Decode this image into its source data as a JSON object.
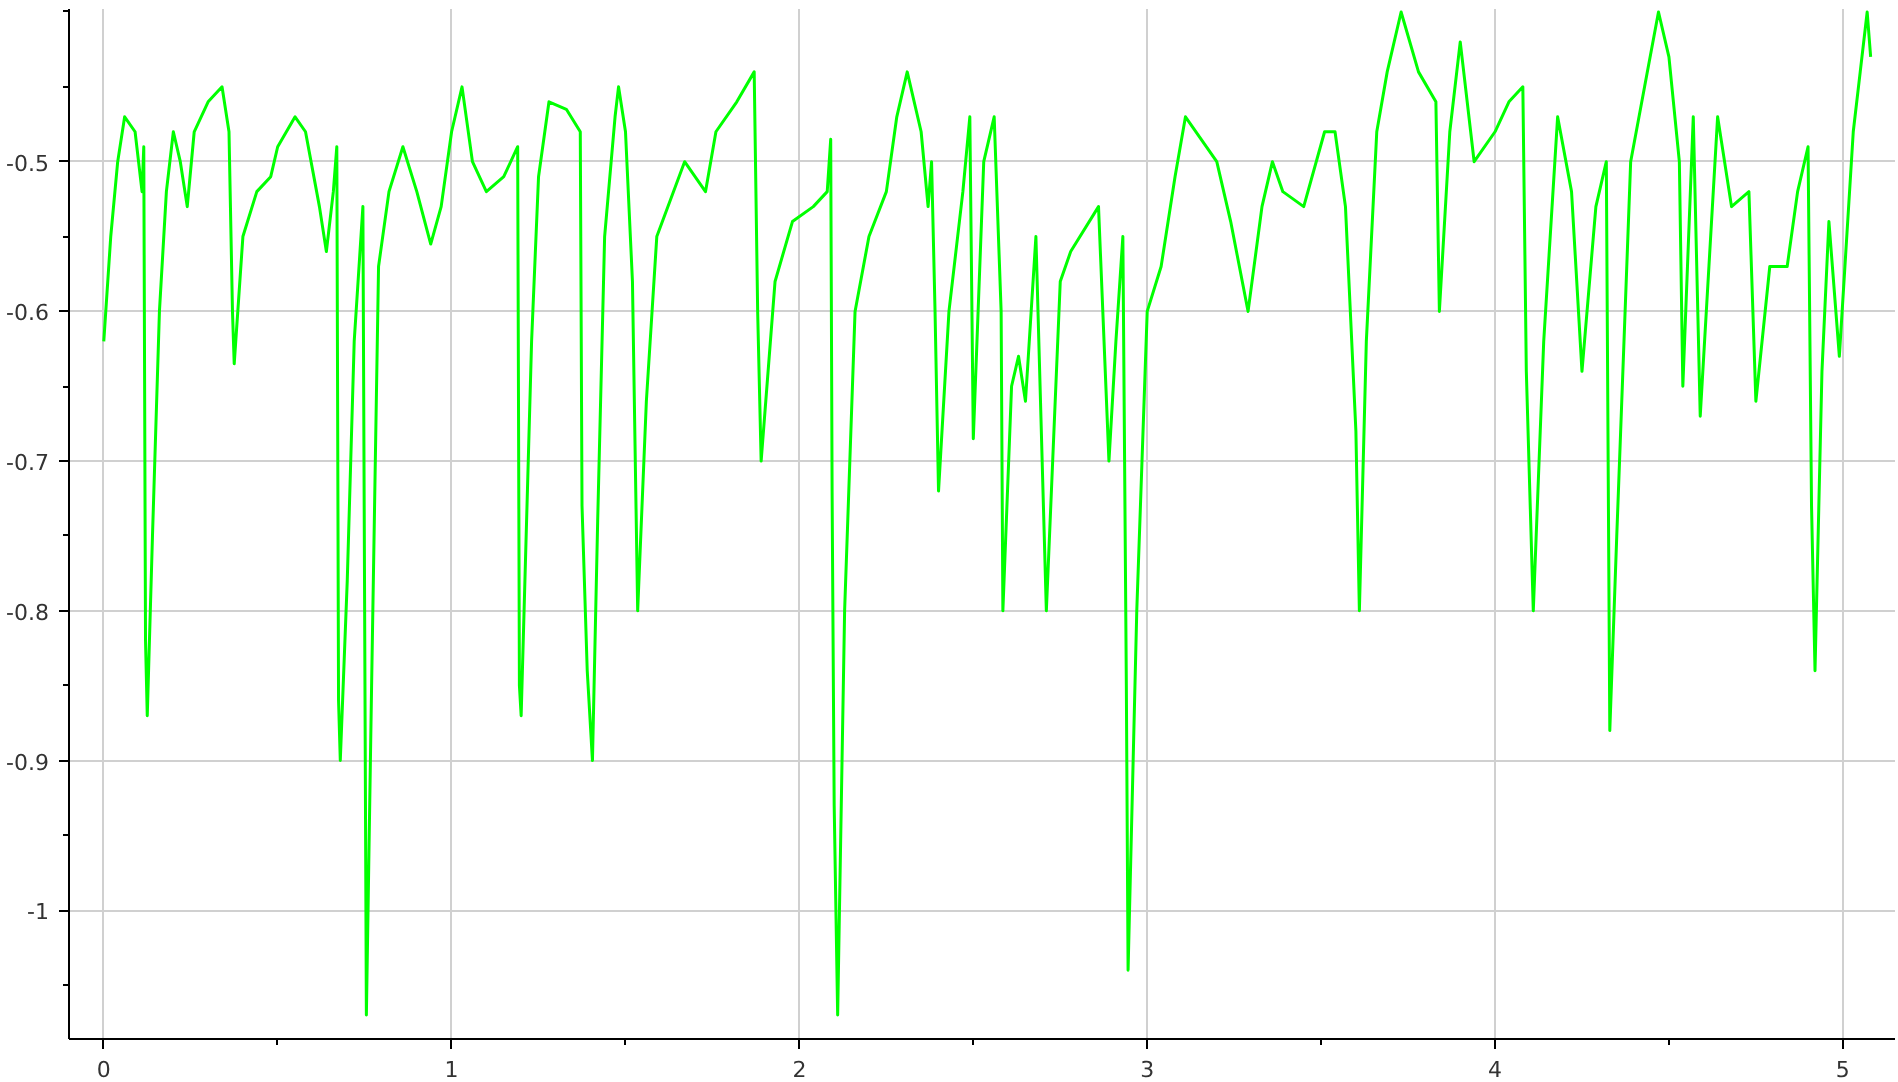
{
  "chart_data": {
    "type": "line",
    "xlim": [
      -0.1,
      5.15
    ],
    "ylim": [
      -1.086,
      -0.398
    ],
    "xticks": [
      0,
      {
        "value": 0.5,
        "label": null
      },
      1,
      {
        "value": 1.5,
        "label": null
      },
      2,
      {
        "value": 2.5,
        "label": null
      },
      3,
      {
        "value": 3.5,
        "label": null
      },
      4,
      {
        "value": 4.5,
        "label": null
      },
      5
    ],
    "yticks": [
      {
        "value": -1.05,
        "label": null
      },
      -1,
      {
        "value": -0.95,
        "label": null
      },
      -0.9,
      {
        "value": -0.85,
        "label": null
      },
      -0.8,
      {
        "value": -0.75,
        "label": null
      },
      -0.7,
      {
        "value": -0.65,
        "label": null
      },
      -0.6,
      {
        "value": -0.55,
        "label": null
      },
      -0.5,
      {
        "value": -0.45,
        "label": null
      },
      {
        "value": -0.4,
        "label": null
      }
    ],
    "grid": true,
    "marker": "none",
    "line_style": "solid",
    "series": [
      {
        "color": "#00ff00",
        "x": [
          0.0,
          0.02,
          0.04,
          0.06,
          0.09,
          0.11,
          0.115,
          0.12,
          0.125,
          0.14,
          0.16,
          0.18,
          0.2,
          0.22,
          0.24,
          0.26,
          0.3,
          0.34,
          0.36,
          0.37,
          0.375,
          0.4,
          0.44,
          0.48,
          0.5,
          0.55,
          0.58,
          0.62,
          0.64,
          0.66,
          0.67,
          0.675,
          0.68,
          0.7,
          0.72,
          0.745,
          0.755,
          0.77,
          0.79,
          0.82,
          0.86,
          0.9,
          0.94,
          0.97,
          1.0,
          1.03,
          1.06,
          1.1,
          1.15,
          1.19,
          1.195,
          1.2,
          1.23,
          1.25,
          1.28,
          1.33,
          1.37,
          1.375,
          1.39,
          1.405,
          1.42,
          1.44,
          1.47,
          1.48,
          1.5,
          1.52,
          1.535,
          1.56,
          1.59,
          1.67,
          1.73,
          1.76,
          1.82,
          1.87,
          1.88,
          1.89,
          1.93,
          1.98,
          2.04,
          2.08,
          2.09,
          2.094,
          2.1,
          2.11,
          2.13,
          2.16,
          2.2,
          2.25,
          2.28,
          2.31,
          2.35,
          2.37,
          2.38,
          2.39,
          2.4,
          2.43,
          2.47,
          2.49,
          2.5,
          2.53,
          2.56,
          2.58,
          2.585,
          2.61,
          2.63,
          2.65,
          2.68,
          2.71,
          2.75,
          2.78,
          2.86,
          2.89,
          2.91,
          2.93,
          2.94,
          2.945,
          2.97,
          3.0,
          3.04,
          3.08,
          3.11,
          3.2,
          3.24,
          3.29,
          3.33,
          3.36,
          3.39,
          3.45,
          3.51,
          3.54,
          3.57,
          3.6,
          3.61,
          3.63,
          3.66,
          3.69,
          3.73,
          3.78,
          3.83,
          3.84,
          3.87,
          3.9,
          3.94,
          4.0,
          4.04,
          4.08,
          4.09,
          4.11,
          4.14,
          4.18,
          4.22,
          4.25,
          4.29,
          4.32,
          4.33,
          4.35,
          4.39,
          4.43,
          4.47,
          4.5,
          4.53,
          4.54,
          4.57,
          4.59,
          4.64,
          4.68,
          4.73,
          4.75,
          4.79,
          4.84,
          4.87,
          4.9,
          4.91,
          4.92,
          4.94,
          4.96,
          4.99,
          5.03,
          5.05,
          5.07,
          5.08
        ],
        "values": [
          -0.62,
          -0.55,
          -0.5,
          -0.47,
          -0.48,
          -0.52,
          -0.49,
          -0.82,
          -0.87,
          -0.75,
          -0.6,
          -0.52,
          -0.48,
          -0.5,
          -0.53,
          -0.48,
          -0.46,
          -0.45,
          -0.48,
          -0.6,
          -0.635,
          -0.55,
          -0.52,
          -0.51,
          -0.49,
          -0.47,
          -0.48,
          -0.53,
          -0.56,
          -0.52,
          -0.49,
          -0.86,
          -0.9,
          -0.78,
          -0.62,
          -0.53,
          -1.07,
          -0.85,
          -0.57,
          -0.52,
          -0.49,
          -0.52,
          -0.555,
          -0.53,
          -0.48,
          -0.45,
          -0.5,
          -0.52,
          -0.51,
          -0.49,
          -0.85,
          -0.87,
          -0.62,
          -0.51,
          -0.46,
          -0.465,
          -0.48,
          -0.73,
          -0.84,
          -0.9,
          -0.74,
          -0.55,
          -0.47,
          -0.45,
          -0.48,
          -0.58,
          -0.8,
          -0.66,
          -0.55,
          -0.5,
          -0.52,
          -0.48,
          -0.46,
          -0.44,
          -0.6,
          -0.7,
          -0.58,
          -0.54,
          -0.53,
          -0.52,
          -0.485,
          -0.72,
          -0.93,
          -1.07,
          -0.8,
          -0.6,
          -0.55,
          -0.52,
          -0.47,
          -0.44,
          -0.48,
          -0.53,
          -0.5,
          -0.6,
          -0.72,
          -0.6,
          -0.52,
          -0.47,
          -0.685,
          -0.5,
          -0.47,
          -0.6,
          -0.8,
          -0.65,
          -0.63,
          -0.66,
          -0.55,
          -0.8,
          -0.58,
          -0.56,
          -0.53,
          -0.7,
          -0.62,
          -0.55,
          -0.85,
          -1.04,
          -0.8,
          -0.6,
          -0.57,
          -0.51,
          -0.47,
          -0.5,
          -0.54,
          -0.6,
          -0.53,
          -0.5,
          -0.52,
          -0.53,
          -0.48,
          -0.48,
          -0.53,
          -0.68,
          -0.8,
          -0.62,
          -0.48,
          -0.44,
          -0.4,
          -0.44,
          -0.46,
          -0.6,
          -0.48,
          -0.42,
          -0.5,
          -0.48,
          -0.46,
          -0.45,
          -0.64,
          -0.8,
          -0.62,
          -0.47,
          -0.52,
          -0.64,
          -0.53,
          -0.5,
          -0.88,
          -0.75,
          -0.5,
          -0.45,
          -0.4,
          -0.43,
          -0.5,
          -0.65,
          -0.47,
          -0.67,
          -0.47,
          -0.53,
          -0.52,
          -0.66,
          -0.57,
          -0.57,
          -0.52,
          -0.49,
          -0.73,
          -0.84,
          -0.64,
          -0.54,
          -0.63,
          -0.48,
          -0.44,
          -0.4,
          -0.43
        ]
      }
    ]
  }
}
